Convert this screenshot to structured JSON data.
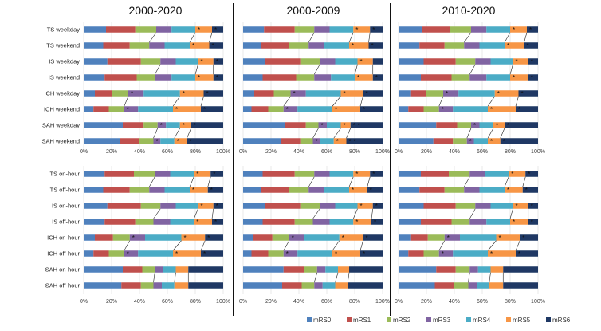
{
  "chart_data": {
    "type": "bar",
    "orientation": "horizontal",
    "stacked": true,
    "percent": true,
    "titles": [
      "2000-2020",
      "2000-2009",
      "2010-2020"
    ],
    "x_ticks": [
      "0%",
      "20%",
      "40%",
      "60%",
      "80%",
      "100%"
    ],
    "legend": {
      "position": "bottom-right",
      "series": [
        {
          "name": "mRS0",
          "color": "#4f81bd"
        },
        {
          "name": "mRS1",
          "color": "#c0504d"
        },
        {
          "name": "mRS2",
          "color": "#9bbb59"
        },
        {
          "name": "mRS3",
          "color": "#8064a2"
        },
        {
          "name": "mRS4",
          "color": "#4bacc6"
        },
        {
          "name": "mRS5",
          "color": "#f79646"
        },
        {
          "name": "mRS6",
          "color": "#1f3864"
        }
      ]
    },
    "charts": [
      {
        "period": "2000-2020",
        "panel": "top",
        "categories": [
          "TS weekday",
          "TS weekend",
          "IS weekday",
          "IS weekend",
          "ICH weekday",
          "ICH weekend",
          "SAH weekday",
          "SAH weekend"
        ],
        "values": [
          [
            16,
            21,
            15,
            11,
            17,
            12,
            8
          ],
          [
            14,
            19,
            14,
            11,
            18,
            14,
            10
          ],
          [
            17,
            24,
            14,
            11,
            16,
            11,
            7
          ],
          [
            15,
            23,
            13,
            12,
            17,
            13,
            7
          ],
          [
            8,
            12,
            12,
            11,
            26,
            17,
            14
          ],
          [
            7,
            11,
            11,
            10,
            25,
            20,
            16
          ],
          [
            28,
            15,
            10,
            6,
            10,
            8,
            23
          ],
          [
            26,
            14,
            10,
            5,
            10,
            9,
            26
          ]
        ],
        "annotations": [
          "* *",
          "* *",
          "* *",
          "* *",
          "* * *",
          "* * *",
          "* * *",
          "* * *"
        ]
      },
      {
        "period": "2000-2009",
        "panel": "top",
        "categories": [
          "TS weekday",
          "TS weekend",
          "IS weekday",
          "IS weekend",
          "ICH weekday",
          "ICH weekend",
          "SAH weekday",
          "SAH weekend"
        ],
        "values": [
          [
            15,
            22,
            14,
            11,
            17,
            12,
            9
          ],
          [
            13,
            20,
            14,
            11,
            18,
            14,
            10
          ],
          [
            16,
            25,
            14,
            11,
            16,
            11,
            7
          ],
          [
            14,
            24,
            13,
            12,
            17,
            13,
            7
          ],
          [
            8,
            14,
            12,
            11,
            25,
            16,
            14
          ],
          [
            6,
            12,
            11,
            10,
            25,
            20,
            16
          ],
          [
            30,
            15,
            9,
            6,
            10,
            7,
            23
          ],
          [
            27,
            14,
            9,
            5,
            10,
            9,
            26
          ]
        ],
        "annotations": [
          "* *",
          "* *",
          "*",
          "* *",
          "* * *",
          "* * *",
          "* * * *",
          "* * * *"
        ]
      },
      {
        "period": "2010-2020",
        "panel": "top",
        "categories": [
          "TS weekday",
          "TS weekend",
          "IS weekday",
          "IS weekend",
          "ICH weekday",
          "ICH weekend",
          "SAH weekday",
          "SAH weekend"
        ],
        "values": [
          [
            17,
            20,
            15,
            11,
            17,
            12,
            8
          ],
          [
            15,
            18,
            14,
            11,
            18,
            14,
            10
          ],
          [
            18,
            23,
            14,
            11,
            16,
            11,
            7
          ],
          [
            16,
            22,
            13,
            12,
            17,
            13,
            7
          ],
          [
            9,
            11,
            12,
            11,
            26,
            17,
            14
          ],
          [
            7,
            11,
            11,
            10,
            25,
            20,
            16
          ],
          [
            27,
            15,
            10,
            6,
            10,
            8,
            24
          ],
          [
            25,
            14,
            10,
            5,
            10,
            9,
            27
          ]
        ],
        "annotations": [
          "* *",
          "* *",
          "* *",
          "* *",
          "* * *",
          "* * *",
          "* * *",
          "* * *"
        ]
      },
      {
        "period": "2000-2020",
        "panel": "bottom",
        "categories": [
          "TS on-hour",
          "TS off-hour",
          "IS on-hour",
          "IS off-hour",
          "ICH on-hour",
          "ICH off-hour",
          "SAH on-hour",
          "SAH off-hour"
        ],
        "values": [
          [
            15,
            21,
            15,
            11,
            17,
            12,
            9
          ],
          [
            14,
            19,
            14,
            11,
            18,
            13,
            11
          ],
          [
            17,
            24,
            14,
            11,
            16,
            11,
            7
          ],
          [
            15,
            22,
            13,
            12,
            17,
            13,
            8
          ],
          [
            8,
            13,
            12,
            11,
            26,
            17,
            13
          ],
          [
            7,
            11,
            11,
            10,
            25,
            20,
            16
          ],
          [
            28,
            14,
            9,
            6,
            9,
            9,
            25
          ],
          [
            27,
            14,
            9,
            6,
            9,
            10,
            25
          ]
        ],
        "annotations": [
          "* *",
          "* *",
          "* *",
          "* *",
          "* * *",
          "* * *",
          "",
          ""
        ]
      },
      {
        "period": "2000-2009",
        "panel": "bottom",
        "categories": [
          "TS on-hour",
          "TS off-hour",
          "IS on-hour",
          "IS off-hour",
          "ICH on-hour",
          "ICH off-hour",
          "SAH on-hour",
          "SAH off-hour"
        ],
        "values": [
          [
            14,
            23,
            14,
            11,
            17,
            12,
            9
          ],
          [
            13,
            20,
            14,
            11,
            18,
            13,
            11
          ],
          [
            16,
            25,
            14,
            11,
            16,
            11,
            7
          ],
          [
            14,
            23,
            13,
            12,
            17,
            13,
            8
          ],
          [
            7,
            14,
            12,
            11,
            25,
            17,
            14
          ],
          [
            6,
            12,
            11,
            10,
            25,
            20,
            16
          ],
          [
            29,
            15,
            9,
            6,
            9,
            8,
            24
          ],
          [
            28,
            14,
            9,
            6,
            9,
            9,
            25
          ]
        ],
        "annotations": [
          "* *",
          "* *",
          "* *",
          "* *",
          "* * *",
          "* * *",
          "",
          ""
        ]
      },
      {
        "period": "2010-2020",
        "panel": "bottom",
        "categories": [
          "TS on-hour",
          "TS off-hour",
          "IS on-hour",
          "IS off-hour",
          "ICH on-hour",
          "ICH off-hour",
          "SAH on-hour",
          "SAH off-hour"
        ],
        "values": [
          [
            16,
            20,
            15,
            11,
            17,
            12,
            9
          ],
          [
            15,
            18,
            14,
            11,
            18,
            13,
            11
          ],
          [
            18,
            23,
            14,
            11,
            16,
            11,
            7
          ],
          [
            16,
            22,
            13,
            12,
            17,
            13,
            7
          ],
          [
            9,
            12,
            12,
            11,
            26,
            17,
            13
          ],
          [
            7,
            11,
            11,
            10,
            25,
            20,
            16
          ],
          [
            27,
            14,
            10,
            6,
            9,
            9,
            25
          ],
          [
            26,
            14,
            10,
            6,
            9,
            10,
            25
          ]
        ],
        "annotations": [
          "* *",
          "* *",
          "* *",
          "* *",
          "* * *",
          "* * *",
          "",
          ""
        ]
      }
    ]
  }
}
